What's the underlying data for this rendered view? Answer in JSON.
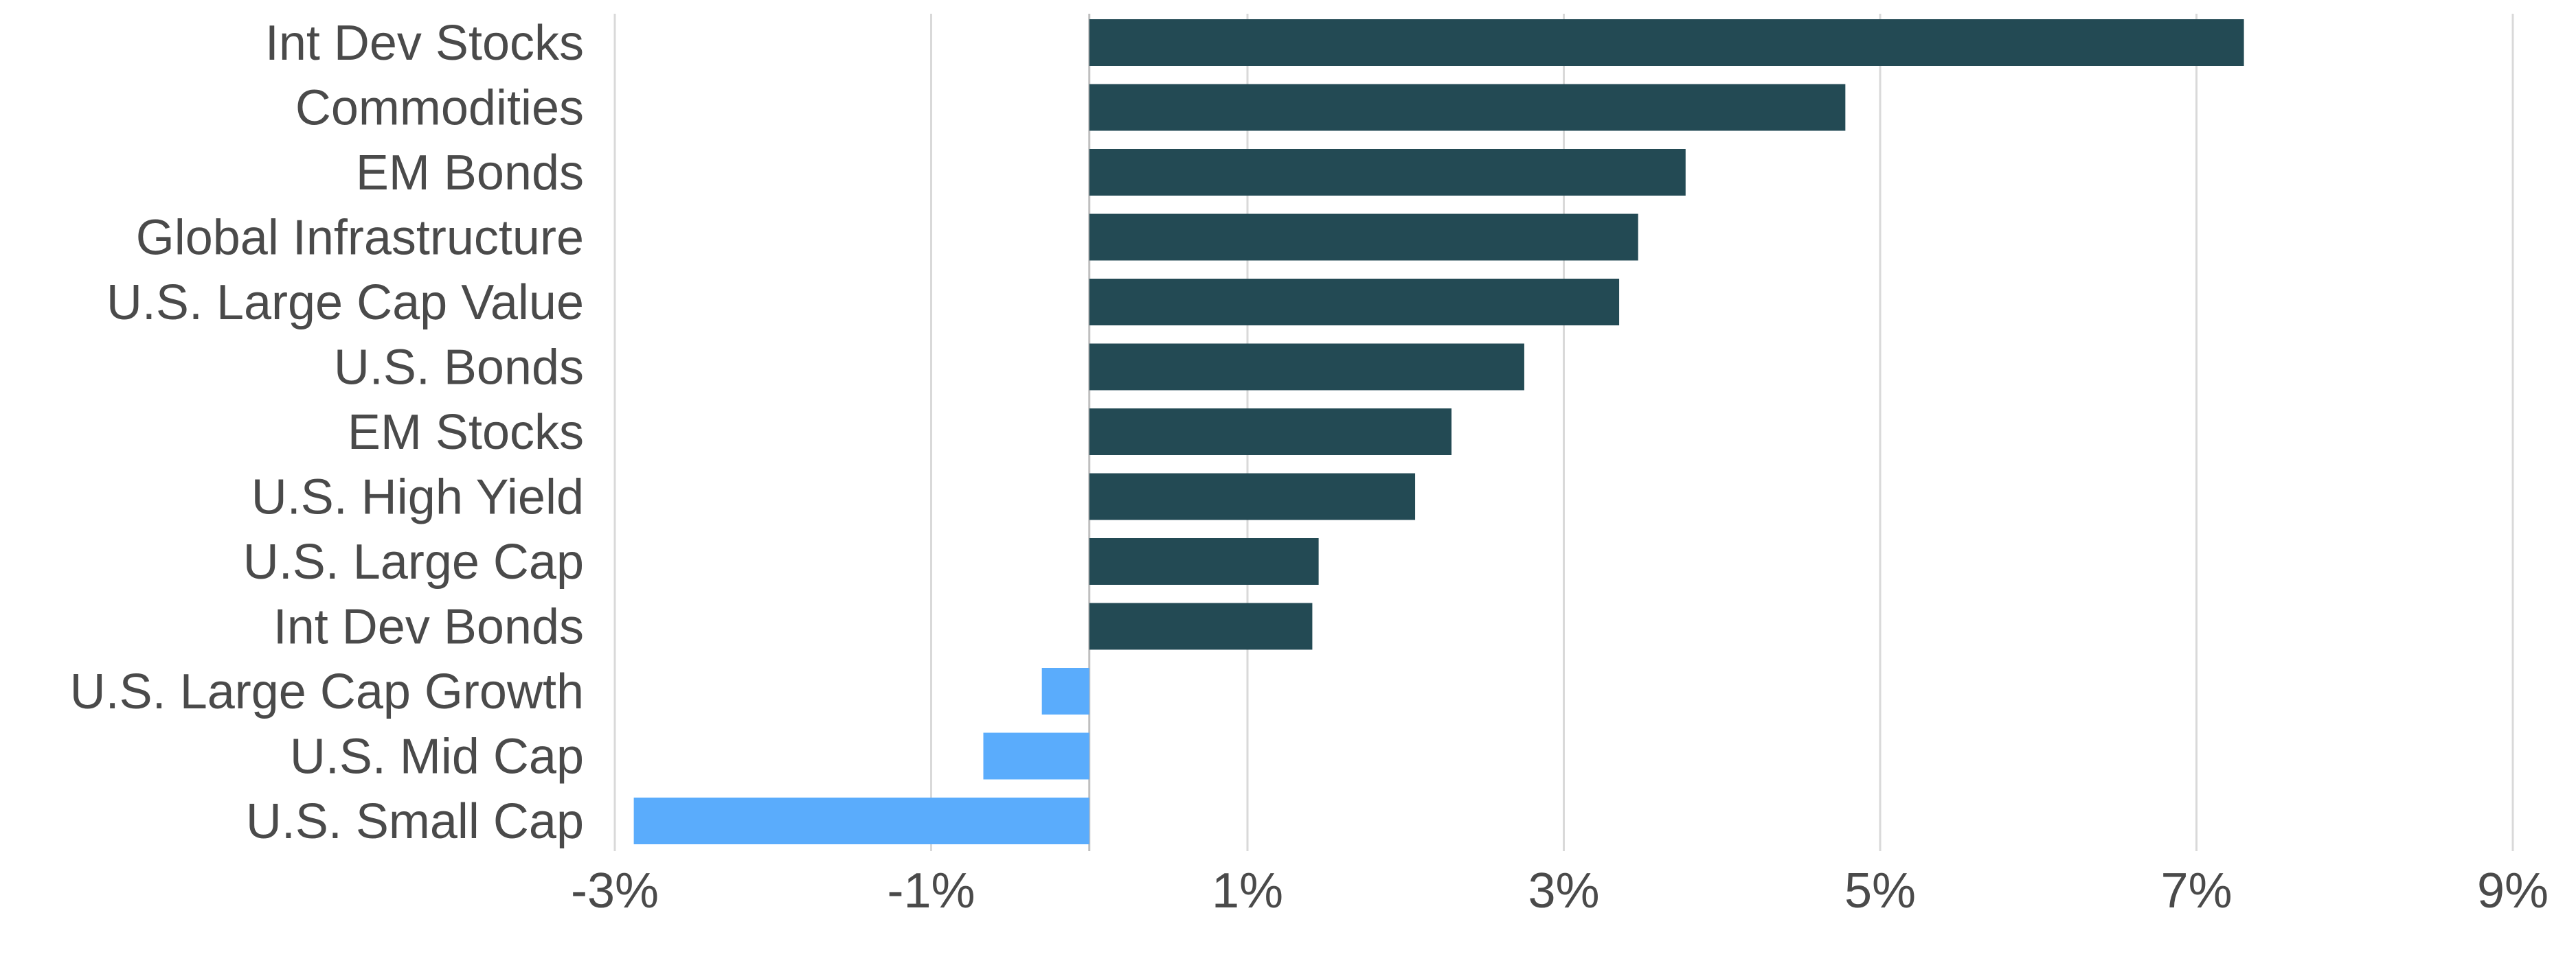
{
  "chart_data": {
    "type": "bar",
    "orientation": "horizontal",
    "title": "",
    "xlabel": "",
    "ylabel": "",
    "categories": [
      "Int Dev Stocks",
      "Commodities",
      "EM Bonds",
      "Global Infrastructure",
      "U.S. Large Cap Value",
      "U.S. Bonds",
      "EM Stocks",
      "U.S. High Yield",
      "U.S. Large Cap",
      "Int Dev Bonds",
      "U.S. Large Cap Growth",
      "U.S. Mid Cap",
      "U.S. Small Cap"
    ],
    "values": [
      7.3,
      4.78,
      3.77,
      3.47,
      3.35,
      2.75,
      2.29,
      2.06,
      1.45,
      1.41,
      -0.3,
      -0.67,
      -2.88
    ],
    "xlim": [
      -3,
      9
    ],
    "x_ticks": [
      -3,
      -1,
      1,
      3,
      5,
      7,
      9
    ],
    "x_tick_labels": [
      "-3%",
      "-1%",
      "1%",
      "3%",
      "5%",
      "7%",
      "9%"
    ],
    "gridlines": true,
    "legend": "none",
    "colors": {
      "positive": "#234a54",
      "negative": "#5aacfc",
      "grid": "#d9d9d9",
      "zero_line": "#bfbfbf",
      "text": "#4a4a4a"
    }
  }
}
